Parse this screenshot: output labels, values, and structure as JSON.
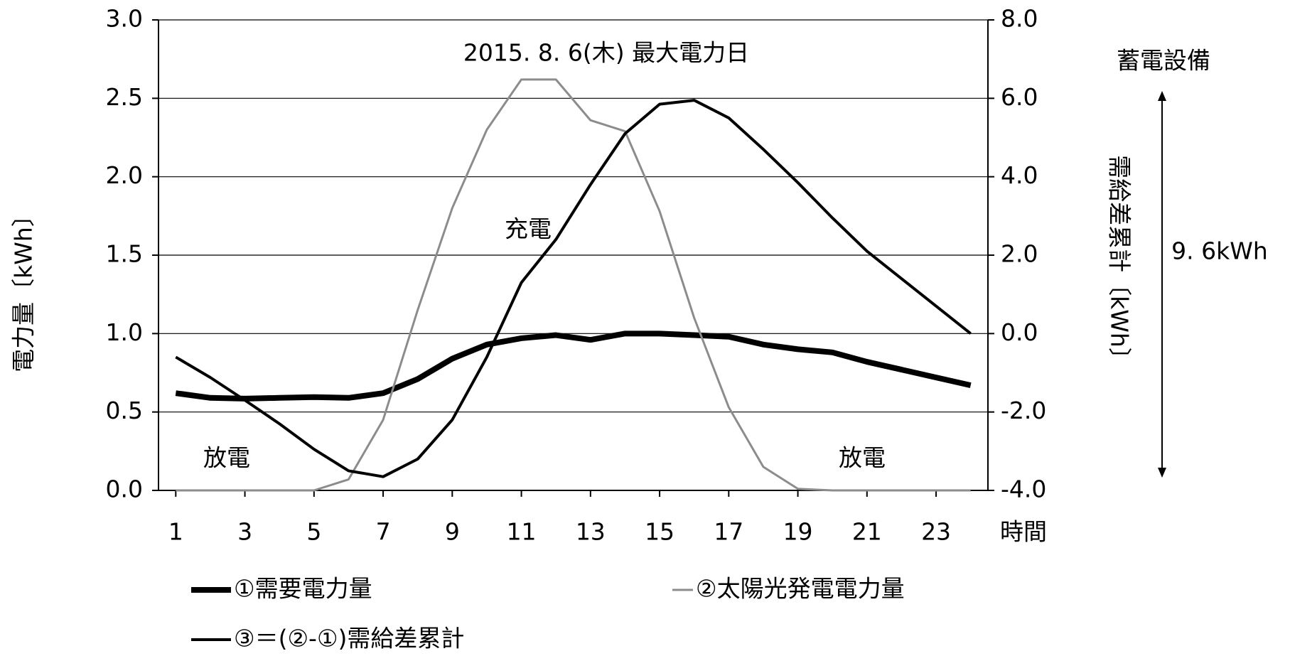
{
  "chart_data": {
    "type": "line",
    "title": "2015. 8. 6(木) 最大電力日",
    "x": [
      1,
      2,
      3,
      4,
      5,
      6,
      7,
      8,
      9,
      10,
      11,
      12,
      13,
      14,
      15,
      16,
      17,
      18,
      19,
      20,
      21,
      22,
      23,
      24
    ],
    "xlim": [
      0.5,
      24.5
    ],
    "xticks": [
      1,
      3,
      5,
      7,
      9,
      11,
      13,
      15,
      17,
      19,
      21,
      23
    ],
    "x_label": "時間",
    "y_label": "電力量〔kWh〕",
    "y2_label": "需給差累計〔kWh〕",
    "ylim": [
      0,
      3
    ],
    "yticks": [
      {
        "value": 0,
        "label": "0.0"
      },
      {
        "value": 0.5,
        "label": "0.5"
      },
      {
        "value": 1,
        "label": "1.0"
      },
      {
        "value": 1.5,
        "label": "1.5"
      },
      {
        "value": 2,
        "label": "2.0"
      },
      {
        "value": 2.5,
        "label": "2.5"
      },
      {
        "value": 3,
        "label": "3.0"
      }
    ],
    "y2lim": [
      -4,
      8
    ],
    "y2ticks": [
      {
        "value": -4,
        "label": "-4.0"
      },
      {
        "value": -2,
        "label": "-2.0"
      },
      {
        "value": 0,
        "label": "0.0"
      },
      {
        "value": 2,
        "label": "2.0"
      },
      {
        "value": 4,
        "label": "4.0"
      },
      {
        "value": 6,
        "label": "6.0"
      },
      {
        "value": 8,
        "label": "8.0"
      }
    ],
    "grid": true,
    "series": [
      {
        "name": "①需要電力量",
        "color": "#000000",
        "width": 8,
        "values": [
          0.62,
          0.59,
          0.585,
          0.59,
          0.595,
          0.59,
          0.62,
          0.71,
          0.84,
          0.93,
          0.97,
          0.99,
          0.96,
          1.0,
          1.0,
          0.99,
          0.98,
          0.93,
          0.9,
          0.88,
          0.82,
          0.77,
          0.72,
          0.67
        ]
      },
      {
        "name": "②太陽光発電電力量",
        "color": "#8c8c8c",
        "width": 3,
        "values": [
          0,
          0,
          0,
          0,
          0,
          0.07,
          0.45,
          1.15,
          1.8,
          2.3,
          2.62,
          2.62,
          2.36,
          2.29,
          1.78,
          1.1,
          0.53,
          0.15,
          0.01,
          0,
          0,
          0,
          0,
          0
        ]
      },
      {
        "name": "③＝(②-①)需給差累計",
        "color": "#000000",
        "width": 4,
        "axis": "y2",
        "values": [
          -0.6,
          -1.12,
          -1.7,
          -2.3,
          -2.95,
          -3.5,
          -3.65,
          -3.2,
          -2.2,
          -0.6,
          1.3,
          2.4,
          3.8,
          5.1,
          5.85,
          5.95,
          5.5,
          4.7,
          3.85,
          2.95,
          2.1,
          1.4,
          0.7,
          0
        ]
      }
    ],
    "annotations": [
      "充電",
      "放電",
      "放電",
      "蓄電設備",
      "9. 6kWh"
    ]
  }
}
